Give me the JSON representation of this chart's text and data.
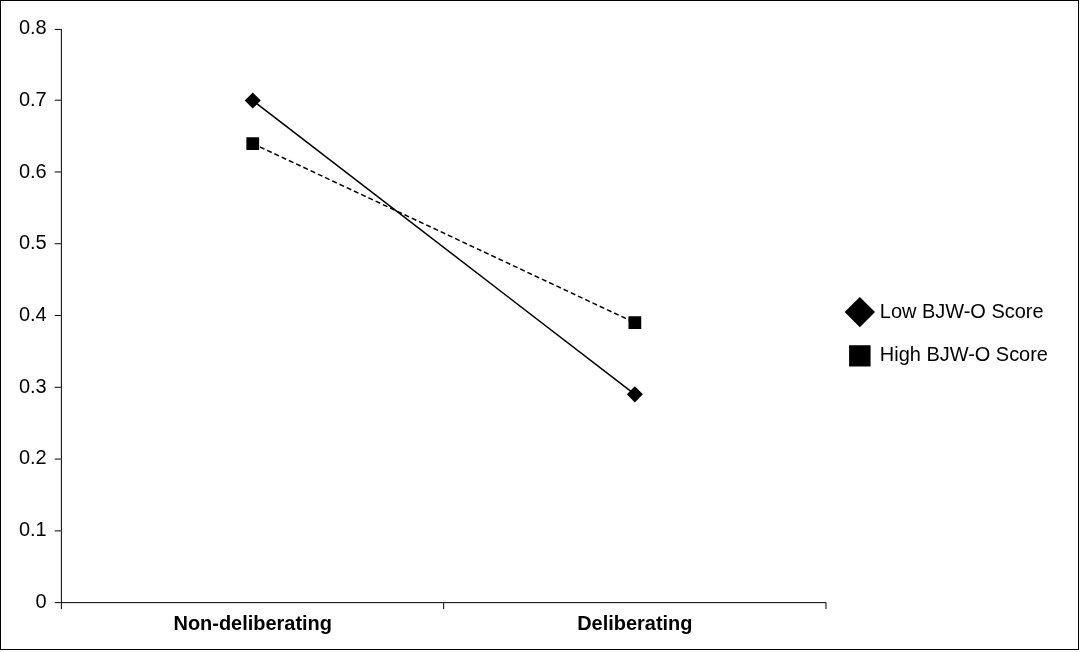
{
  "chart_data": {
    "type": "line",
    "categories": [
      "Non-deliberating",
      "Deliberating"
    ],
    "series": [
      {
        "name": "Low BJW-O Score",
        "color": "#000000",
        "values": [
          0.7,
          0.29
        ],
        "marker": "diamond",
        "line_style": "solid"
      },
      {
        "name": "High BJW-O Score",
        "color": "#000000",
        "values": [
          0.64,
          0.39
        ],
        "marker": "square",
        "line_style": "dashed"
      }
    ],
    "ylim": [
      0,
      0.8
    ],
    "yticks": [
      0,
      0.1,
      0.2,
      0.3,
      0.4,
      0.5,
      0.6,
      0.7,
      0.8
    ],
    "grid": false,
    "legend": "right"
  }
}
